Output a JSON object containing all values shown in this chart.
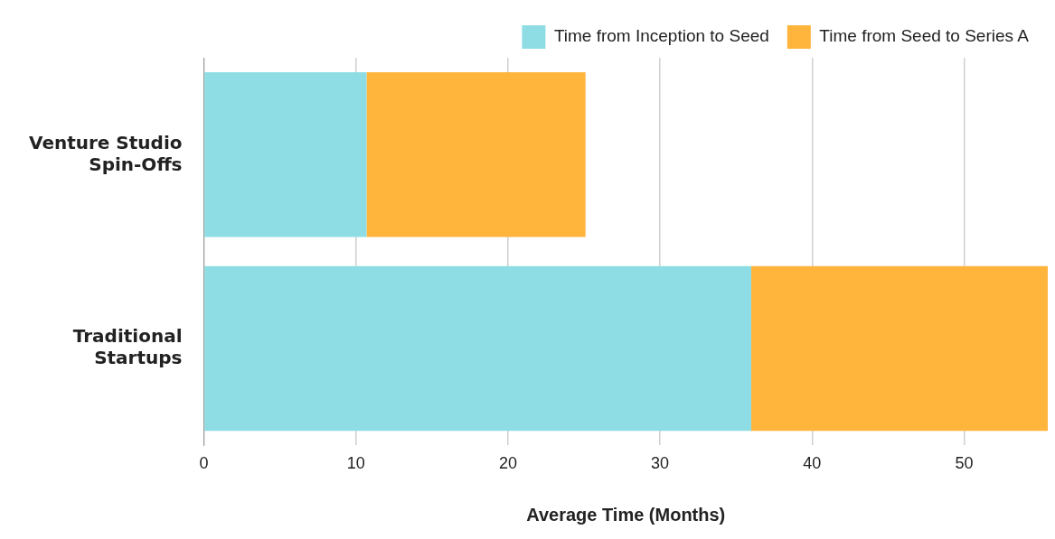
{
  "chart_data": {
    "type": "bar",
    "orientation": "horizontal",
    "stacked": true,
    "xlabel": "Average Time (Months)",
    "categories": [
      "Venture Studio Spin-Offs",
      "Traditional Startups"
    ],
    "series": [
      {
        "name": "Time from Inception to Seed",
        "color": "#8fdde4",
        "values": [
          10.7,
          36
        ]
      },
      {
        "name": "Time from Seed to Series A",
        "color": "#ffb43c",
        "values": [
          14.4,
          19.5
        ]
      }
    ],
    "xlim": [
      0,
      55.5
    ],
    "xticks": [
      0,
      10,
      20,
      30,
      40,
      50
    ],
    "grid": "x",
    "legend": "top right"
  }
}
